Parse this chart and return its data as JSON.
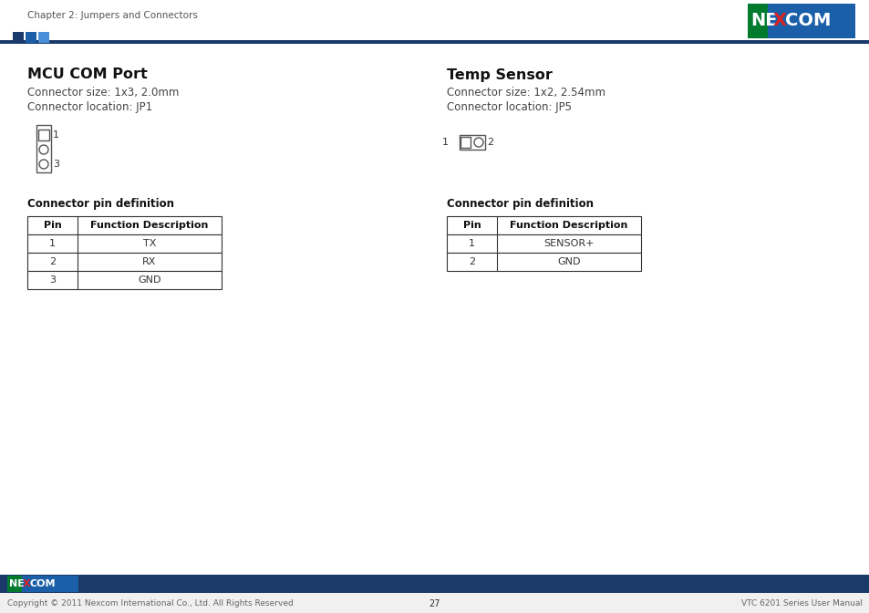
{
  "bg_color": "#ffffff",
  "header_bar_color": "#1a3a6b",
  "header_text": "Chapter 2: Jumpers and Connectors",
  "header_text_color": "#555555",
  "decorative_sq_colors": [
    "#1a3a6b",
    "#1a5fa8",
    "#4a90d9"
  ],
  "footer_bg": "#1a3a6b",
  "footer_text_left": "Copyright © 2011 Nexcom International Co., Ltd. All Rights Reserved",
  "footer_text_center": "27",
  "footer_text_right": "VTC 6201 Series User Manual",
  "left_section": {
    "title": "MCU COM Port",
    "line1": "Connector size: 1x3, 2.0mm",
    "line2": "Connector location: JP1",
    "pin_def_title": "Connector pin definition",
    "table_headers": [
      "Pin",
      "Function Description"
    ],
    "table_rows": [
      [
        "1",
        "TX"
      ],
      [
        "2",
        "RX"
      ],
      [
        "3",
        "GND"
      ]
    ]
  },
  "right_section": {
    "title": "Temp Sensor",
    "line1": "Connector size: 1x2, 2.54mm",
    "line2": "Connector location: JP5",
    "pin_def_title": "Connector pin definition",
    "table_headers": [
      "Pin",
      "Function Description"
    ],
    "table_rows": [
      [
        "1",
        "SENSOR+"
      ],
      [
        "2",
        "GND"
      ]
    ]
  }
}
